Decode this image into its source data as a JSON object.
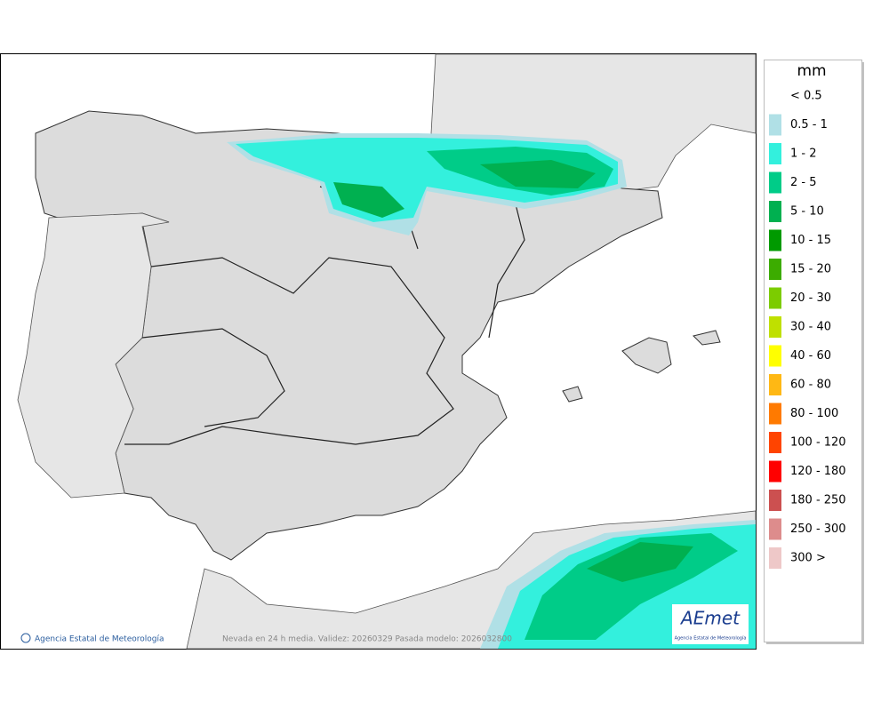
{
  "legend": {
    "title": "mm",
    "items": [
      {
        "label": "< 0.5",
        "color": "#ffffff"
      },
      {
        "label": "0.5 - 1",
        "color": "#b0e0e6"
      },
      {
        "label": "1 - 2",
        "color": "#33f0dd"
      },
      {
        "label": "2 - 5",
        "color": "#00cc88"
      },
      {
        "label": "5 - 10",
        "color": "#00b050"
      },
      {
        "label": "10 - 15",
        "color": "#009a00"
      },
      {
        "label": "15 - 20",
        "color": "#3cac00"
      },
      {
        "label": "20 - 30",
        "color": "#7ccc00"
      },
      {
        "label": "30 - 40",
        "color": "#bfe000"
      },
      {
        "label": "40 - 60",
        "color": "#ffff00"
      },
      {
        "label": "60 - 80",
        "color": "#ffb814"
      },
      {
        "label": "80 - 100",
        "color": "#ff7a00"
      },
      {
        "label": "100 - 120",
        "color": "#ff4400"
      },
      {
        "label": "120 - 180",
        "color": "#ff0000"
      },
      {
        "label": "180 - 250",
        "color": "#cc5050"
      },
      {
        "label": "250 - 300",
        "color": "#dd8c8c"
      },
      {
        "label": "300 >",
        "color": "#eec8c8"
      }
    ]
  },
  "footer": {
    "credit": "Agencia Estatal de Meteorología",
    "caption": "Nevada en 24 h media. Validez: 20260329 Pasada modelo: 2026032800"
  },
  "logo": {
    "name": "AEmet",
    "subtitle": "Agencia Estatal de Meteorología"
  }
}
